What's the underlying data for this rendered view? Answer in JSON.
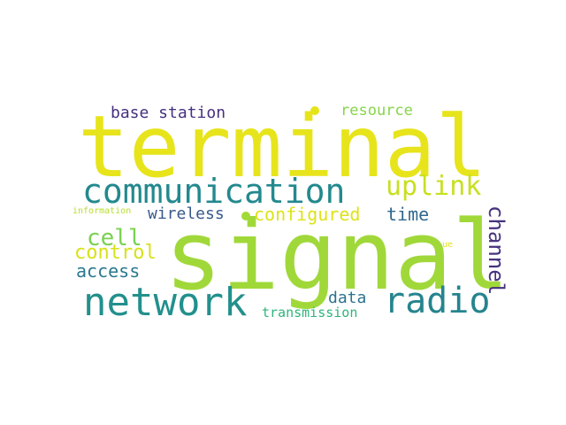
{
  "word_cloud": {
    "words": [
      {
        "id": "terminal",
        "text": "terminal",
        "color": "#e7e41c"
      },
      {
        "id": "signal",
        "text": "signal",
        "color": "#a0d83a"
      },
      {
        "id": "communication",
        "text": "communication",
        "color": "#23898e"
      },
      {
        "id": "network",
        "text": "network",
        "color": "#22908c"
      },
      {
        "id": "radio",
        "text": "radio",
        "color": "#25848e"
      },
      {
        "id": "uplink",
        "text": "uplink",
        "color": "#c7e020"
      },
      {
        "id": "cell",
        "text": "cell",
        "color": "#7ad151"
      },
      {
        "id": "channel",
        "text": "channel",
        "color": "#46327e"
      },
      {
        "id": "configured",
        "text": "configured",
        "color": "#dde318"
      },
      {
        "id": "control",
        "text": "control",
        "color": "#d8e219"
      },
      {
        "id": "access",
        "text": "access",
        "color": "#2a788e"
      },
      {
        "id": "wireless",
        "text": "wireless",
        "color": "#38588c"
      },
      {
        "id": "time",
        "text": "time",
        "color": "#31688e"
      },
      {
        "id": "base-station",
        "text": "base station",
        "color": "#46307e"
      },
      {
        "id": "resource",
        "text": "resource",
        "color": "#86d549"
      },
      {
        "id": "data",
        "text": "data",
        "color": "#2c728e"
      },
      {
        "id": "transmission",
        "text": "transmission",
        "color": "#2fb47c"
      },
      {
        "id": "information",
        "text": "information",
        "color": "#b5de2b"
      },
      {
        "id": "ue",
        "text": "ue",
        "color": "#e5e419"
      }
    ],
    "dots": [
      {
        "id": "dot-top",
        "color": "#e5e419"
      },
      {
        "id": "dot-mid",
        "color": "#a2da37"
      }
    ]
  }
}
